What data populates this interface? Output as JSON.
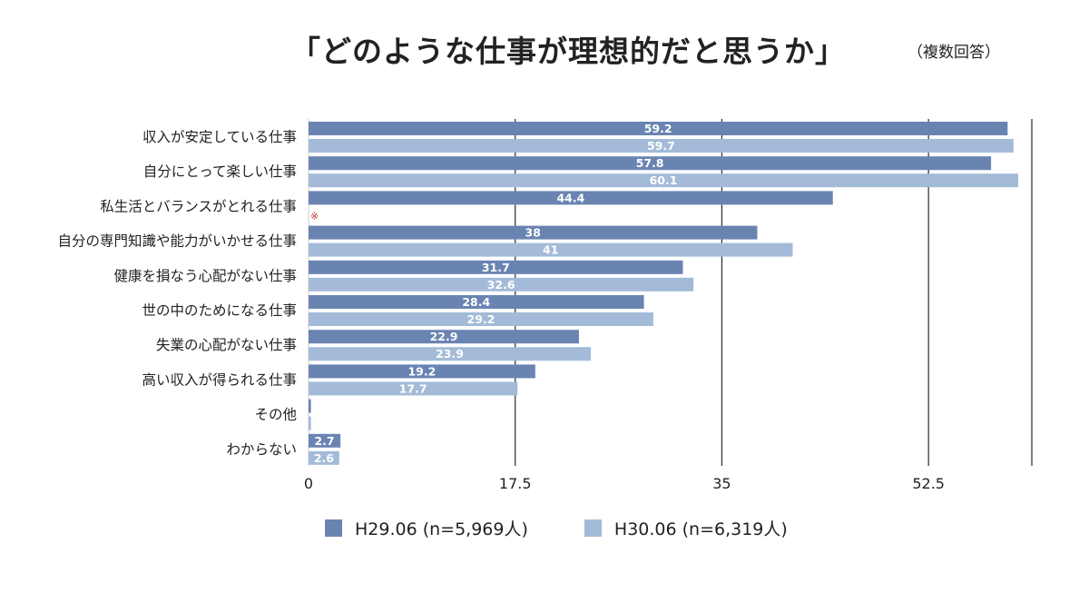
{
  "title": "「どのような仕事が理想的だと思うか」",
  "subtitle": "（複数回答）",
  "colors": {
    "h29": "#6a84b2",
    "h30": "#a3bbd8",
    "grid": "#2b2b2b",
    "note": "#c0392b"
  },
  "chart_data": {
    "type": "bar",
    "orientation": "horizontal",
    "categories": [
      "収入が安定している仕事",
      "自分にとって楽しい仕事",
      "私生活とバランスがとれる仕事",
      "自分の専門知識や能力がいかせる仕事",
      "健康を損なう心配がない仕事",
      "世の中のためになる仕事",
      "失業の心配がない仕事",
      "高い収入が得られる仕事",
      "その他",
      "わからない"
    ],
    "series": [
      {
        "name": "H29.06 (n=5,969人)",
        "values": [
          59.2,
          57.8,
          44.4,
          38,
          31.7,
          28.4,
          22.9,
          19.2,
          0.2,
          2.7
        ],
        "labels": [
          "59.2",
          "57.8",
          "44.4",
          "38",
          "31.7",
          "28.4",
          "22.9",
          "19.2",
          "",
          "2.7"
        ]
      },
      {
        "name": "H30.06 (n=6,319人)",
        "values": [
          59.7,
          60.1,
          null,
          41,
          32.6,
          29.2,
          23.9,
          17.7,
          0.2,
          2.6
        ],
        "labels": [
          "59.7",
          "60.1",
          "",
          "41",
          "32.6",
          "29.2",
          "23.9",
          "17.7",
          "",
          "2.6"
        ]
      }
    ],
    "note_mark": "※",
    "note_category_index": 2,
    "xticks": [
      0,
      17.5,
      35,
      52.5
    ],
    "xtick_labels": [
      "0",
      "17.5",
      "35",
      "52.5"
    ],
    "xlim": [
      0,
      61.25
    ],
    "grid": true,
    "legend_position": "bottom"
  }
}
